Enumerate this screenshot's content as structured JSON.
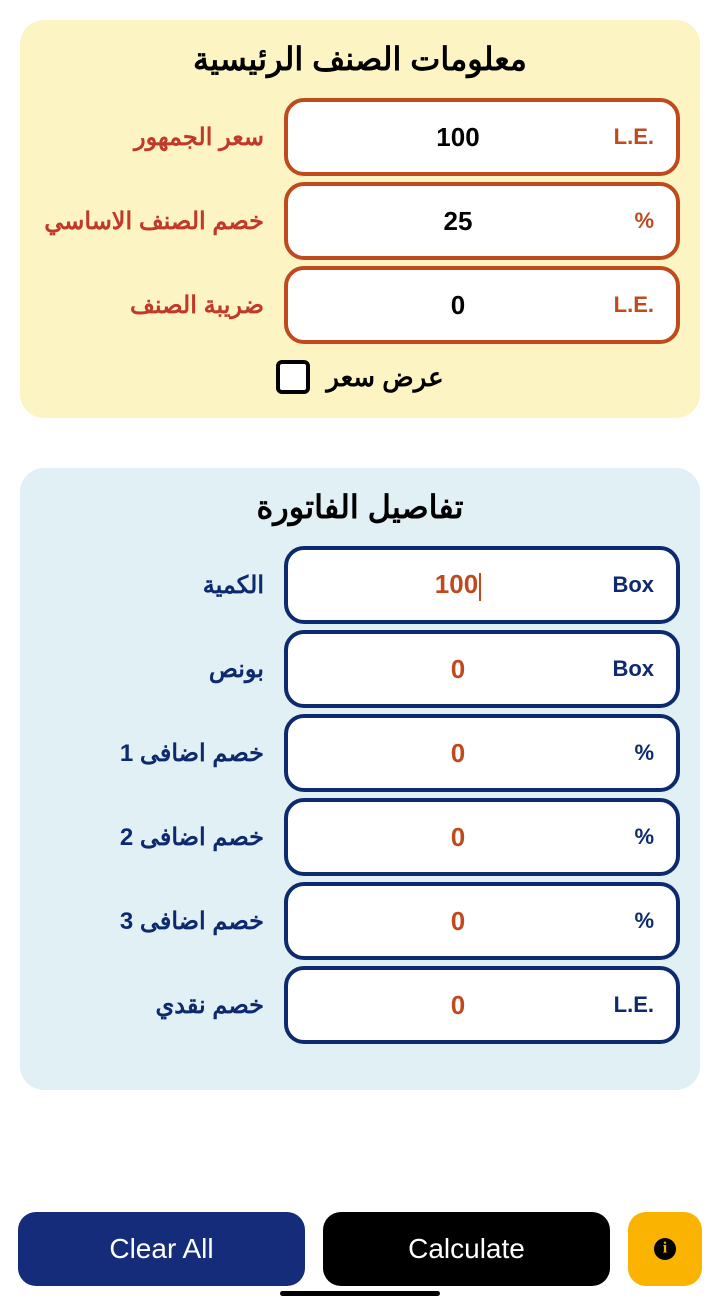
{
  "section1": {
    "title": "معلومات الصنف الرئيسية",
    "rows": [
      {
        "label": "سعر الجمهور",
        "value": "100",
        "unit": "L.E."
      },
      {
        "label": "خصم الصنف الاساسي",
        "value": "25",
        "unit": "%"
      },
      {
        "label": "ضريبة الصنف",
        "value": "0",
        "unit": "L.E."
      }
    ],
    "checkbox_label": "عرض سعر"
  },
  "section2": {
    "title": "تفاصيل الفاتورة",
    "rows": [
      {
        "label": "الكمية",
        "value": "100",
        "unit": "Box",
        "active": true
      },
      {
        "label": "بونص",
        "value": "0",
        "unit": "Box"
      },
      {
        "label": "خصم اضافى 1",
        "value": "0",
        "unit": "%"
      },
      {
        "label": "خصم اضافى 2",
        "value": "0",
        "unit": "%"
      },
      {
        "label": "خصم اضافى 3",
        "value": "0",
        "unit": "%"
      },
      {
        "label": "خصم نقدي",
        "value": "0",
        "unit": "L.E."
      }
    ]
  },
  "buttons": {
    "clear": "Clear All",
    "calculate": "Calculate"
  },
  "colors": {
    "card_yellow": "#fcf4c3",
    "card_blue": "#e1f0f4",
    "border_red": "#bf4a1e",
    "border_blue": "#0e2a6e",
    "btn_clear": "#152c7a",
    "btn_calc": "#000000",
    "btn_info": "#f9b300"
  }
}
